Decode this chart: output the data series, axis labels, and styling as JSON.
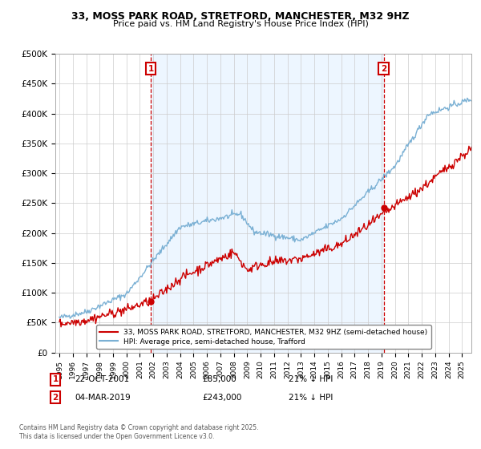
{
  "title": "33, MOSS PARK ROAD, STRETFORD, MANCHESTER, M32 9HZ",
  "subtitle": "Price paid vs. HM Land Registry's House Price Index (HPI)",
  "ylabel_ticks": [
    "£0",
    "£50K",
    "£100K",
    "£150K",
    "£200K",
    "£250K",
    "£300K",
    "£350K",
    "£400K",
    "£450K",
    "£500K"
  ],
  "ytick_values": [
    0,
    50000,
    100000,
    150000,
    200000,
    250000,
    300000,
    350000,
    400000,
    450000,
    500000
  ],
  "xlim": [
    1994.7,
    2025.7
  ],
  "ylim": [
    0,
    500000
  ],
  "hpi_color": "#7ab0d4",
  "price_color": "#cc0000",
  "vline_color": "#cc0000",
  "shade_color": "#ddeeff",
  "marker1_date": 2001.81,
  "marker2_date": 2019.17,
  "marker1_price": 85000,
  "marker2_price": 243000,
  "legend_label1": "33, MOSS PARK ROAD, STRETFORD, MANCHESTER, M32 9HZ (semi-detached house)",
  "legend_label2": "HPI: Average price, semi-detached house, Trafford",
  "background_color": "#ffffff",
  "grid_color": "#cccccc",
  "copyright": "Contains HM Land Registry data © Crown copyright and database right 2025.\nThis data is licensed under the Open Government Licence v3.0."
}
